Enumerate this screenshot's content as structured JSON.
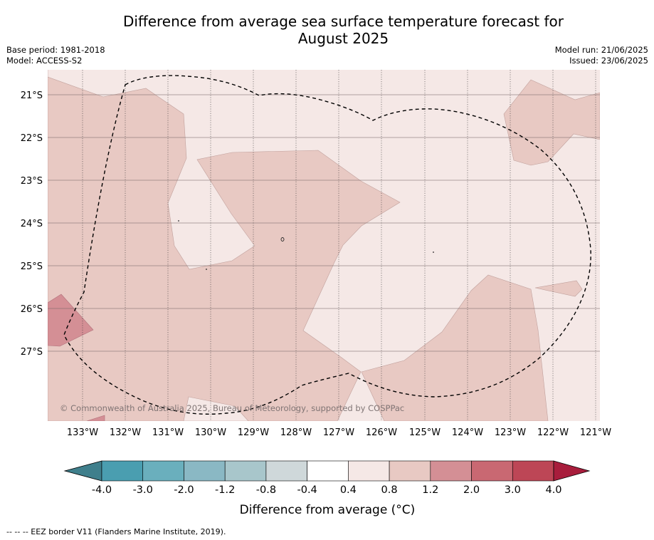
{
  "title_line1": "Difference from average sea surface temperature forecast for",
  "title_line2": "August 2025",
  "base_period": "Base period: 1981-2018",
  "model": "Model: ACCESS-S2",
  "model_run": "Model run: 21/06/2025",
  "issued": "Issued: 23/06/2025",
  "copyright": "© Commonwealth of Australia 2025, Bureau of Meteorology, supported by COSPPac",
  "lat_labels": [
    "21°S",
    "22°S",
    "23°S",
    "24°S",
    "25°S",
    "26°S",
    "27°S"
  ],
  "lon_labels": [
    "133°W",
    "132°W",
    "131°W",
    "130°W",
    "129°W",
    "128°W",
    "127°W",
    "126°W",
    "125°W",
    "124°W",
    "123°W",
    "122°W",
    "121°W"
  ],
  "colorbar": {
    "title": "Difference from average (°C)",
    "ticks": [
      "-4.0",
      "-3.0",
      "-2.0",
      "-1.2",
      "-0.8",
      "-0.4",
      "0.4",
      "0.8",
      "1.2",
      "2.0",
      "3.0",
      "4.0"
    ],
    "colors": [
      "#3f7f8c",
      "#4a9eb0",
      "#6aafbd",
      "#8ab8c4",
      "#a8c6cb",
      "#cfd8da",
      "#ffffff",
      "#f5e8e6",
      "#e8c9c3",
      "#d48f95",
      "#c96872",
      "#bd4656",
      "#a81d3c"
    ]
  },
  "footnote": "-- -- -- EEZ border V11 (Flanders Marine Institute, 2019).",
  "legend_categories": {
    "light": "0.4 to 0.8",
    "medium": "0.8 to 1.2",
    "warm": "1.2 to 2.0"
  }
}
